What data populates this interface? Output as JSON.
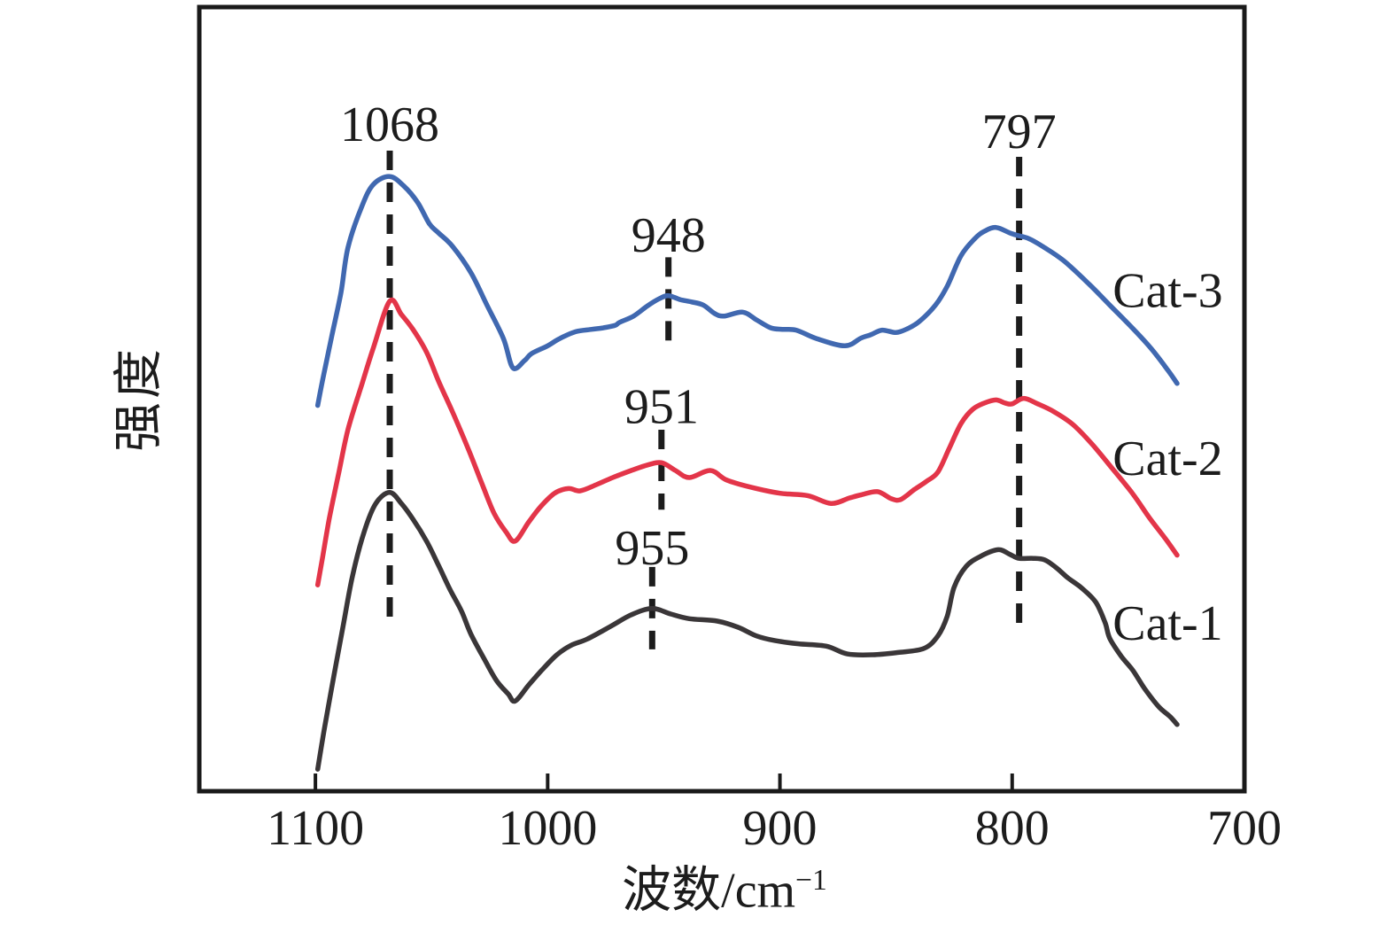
{
  "figure": {
    "background": "#ffffff",
    "text_color": "#1c1c1c",
    "axis_color": "#1a1a1a"
  },
  "chart_data": {
    "type": "line",
    "title": "",
    "xlabel": "波数/cm⁻¹",
    "xlabel_prefix": "波数/cm",
    "xlabel_superscript": "−1",
    "ylabel": "强度",
    "x_axis": {
      "range": [
        1150,
        700
      ],
      "reversed": true,
      "ticks": [
        1100,
        1000,
        900,
        800,
        700
      ]
    },
    "y_axis": {
      "range": [
        0,
        1
      ],
      "ticks": []
    },
    "grid": false,
    "legend_position": "right-inline",
    "series": [
      {
        "name": "Cat-1",
        "color": "#3a3638",
        "points": [
          [
            1099,
            0.028
          ],
          [
            1096,
            0.082
          ],
          [
            1092,
            0.148
          ],
          [
            1088,
            0.212
          ],
          [
            1084,
            0.275
          ],
          [
            1079,
            0.331
          ],
          [
            1074,
            0.367
          ],
          [
            1068,
            0.381
          ],
          [
            1063,
            0.367
          ],
          [
            1058,
            0.347
          ],
          [
            1052,
            0.318
          ],
          [
            1047,
            0.288
          ],
          [
            1042,
            0.257
          ],
          [
            1037,
            0.229
          ],
          [
            1033,
            0.2
          ],
          [
            1027,
            0.167
          ],
          [
            1022,
            0.141
          ],
          [
            1017,
            0.124
          ],
          [
            1014,
            0.115
          ],
          [
            1008,
            0.136
          ],
          [
            1002,
            0.156
          ],
          [
            996,
            0.174
          ],
          [
            990,
            0.186
          ],
          [
            983,
            0.194
          ],
          [
            973,
            0.21
          ],
          [
            964,
            0.225
          ],
          [
            955,
            0.233
          ],
          [
            947,
            0.226
          ],
          [
            939,
            0.22
          ],
          [
            927,
            0.217
          ],
          [
            918,
            0.209
          ],
          [
            910,
            0.198
          ],
          [
            902,
            0.192
          ],
          [
            892,
            0.188
          ],
          [
            880,
            0.185
          ],
          [
            871,
            0.175
          ],
          [
            860,
            0.174
          ],
          [
            849,
            0.177
          ],
          [
            838,
            0.182
          ],
          [
            832,
            0.198
          ],
          [
            828,
            0.223
          ],
          [
            825,
            0.26
          ],
          [
            820,
            0.286
          ],
          [
            814,
            0.299
          ],
          [
            806,
            0.308
          ],
          [
            801,
            0.302
          ],
          [
            797,
            0.297
          ],
          [
            791,
            0.297
          ],
          [
            786,
            0.295
          ],
          [
            781,
            0.285
          ],
          [
            776,
            0.272
          ],
          [
            770,
            0.259
          ],
          [
            764,
            0.241
          ],
          [
            760,
            0.215
          ],
          [
            758,
            0.195
          ],
          [
            753,
            0.172
          ],
          [
            748,
            0.154
          ],
          [
            743,
            0.131
          ],
          [
            737,
            0.108
          ],
          [
            732,
            0.095
          ],
          [
            729,
            0.085
          ]
        ]
      },
      {
        "name": "Cat-2",
        "color": "#e33549",
        "points": [
          [
            1099,
            0.263
          ],
          [
            1097,
            0.297
          ],
          [
            1094,
            0.348
          ],
          [
            1090,
            0.405
          ],
          [
            1086,
            0.461
          ],
          [
            1080,
            0.519
          ],
          [
            1075,
            0.566
          ],
          [
            1068,
            0.625
          ],
          [
            1063,
            0.608
          ],
          [
            1058,
            0.589
          ],
          [
            1052,
            0.559
          ],
          [
            1047,
            0.523
          ],
          [
            1041,
            0.484
          ],
          [
            1034,
            0.435
          ],
          [
            1028,
            0.39
          ],
          [
            1023,
            0.354
          ],
          [
            1018,
            0.331
          ],
          [
            1014,
            0.319
          ],
          [
            1008,
            0.344
          ],
          [
            1003,
            0.363
          ],
          [
            997,
            0.38
          ],
          [
            991,
            0.386
          ],
          [
            986,
            0.383
          ],
          [
            979,
            0.391
          ],
          [
            972,
            0.4
          ],
          [
            964,
            0.409
          ],
          [
            957,
            0.416
          ],
          [
            951,
            0.419
          ],
          [
            945,
            0.409
          ],
          [
            939,
            0.4
          ],
          [
            930,
            0.409
          ],
          [
            923,
            0.397
          ],
          [
            913,
            0.388
          ],
          [
            900,
            0.38
          ],
          [
            888,
            0.377
          ],
          [
            878,
            0.367
          ],
          [
            870,
            0.374
          ],
          [
            865,
            0.378
          ],
          [
            858,
            0.382
          ],
          [
            852,
            0.373
          ],
          [
            848,
            0.372
          ],
          [
            842,
            0.385
          ],
          [
            837,
            0.395
          ],
          [
            832,
            0.407
          ],
          [
            827,
            0.438
          ],
          [
            822,
            0.469
          ],
          [
            817,
            0.487
          ],
          [
            812,
            0.495
          ],
          [
            807,
            0.499
          ],
          [
            803,
            0.495
          ],
          [
            800,
            0.494
          ],
          [
            795,
            0.501
          ],
          [
            789,
            0.494
          ],
          [
            782,
            0.484
          ],
          [
            774,
            0.468
          ],
          [
            766,
            0.444
          ],
          [
            757,
            0.412
          ],
          [
            748,
            0.379
          ],
          [
            741,
            0.349
          ],
          [
            734,
            0.322
          ],
          [
            729,
            0.301
          ]
        ]
      },
      {
        "name": "Cat-3",
        "color": "#4068b0",
        "points": [
          [
            1099,
            0.492
          ],
          [
            1097,
            0.523
          ],
          [
            1093,
            0.58
          ],
          [
            1089,
            0.636
          ],
          [
            1086,
            0.693
          ],
          [
            1080,
            0.746
          ],
          [
            1075,
            0.774
          ],
          [
            1068,
            0.784
          ],
          [
            1062,
            0.772
          ],
          [
            1056,
            0.751
          ],
          [
            1051,
            0.724
          ],
          [
            1047,
            0.712
          ],
          [
            1041,
            0.695
          ],
          [
            1033,
            0.661
          ],
          [
            1026,
            0.619
          ],
          [
            1019,
            0.577
          ],
          [
            1015,
            0.54
          ],
          [
            1010,
            0.549
          ],
          [
            1007,
            0.558
          ],
          [
            1000,
            0.568
          ],
          [
            995,
            0.577
          ],
          [
            988,
            0.586
          ],
          [
            981,
            0.589
          ],
          [
            976,
            0.591
          ],
          [
            971,
            0.594
          ],
          [
            969,
            0.598
          ],
          [
            963,
            0.606
          ],
          [
            957,
            0.619
          ],
          [
            952,
            0.628
          ],
          [
            948,
            0.632
          ],
          [
            943,
            0.627
          ],
          [
            938,
            0.624
          ],
          [
            933,
            0.62
          ],
          [
            928,
            0.609
          ],
          [
            924,
            0.606
          ],
          [
            916,
            0.611
          ],
          [
            910,
            0.601
          ],
          [
            904,
            0.591
          ],
          [
            899,
            0.589
          ],
          [
            893,
            0.588
          ],
          [
            884,
            0.577
          ],
          [
            872,
            0.568
          ],
          [
            865,
            0.578
          ],
          [
            861,
            0.582
          ],
          [
            856,
            0.588
          ],
          [
            850,
            0.585
          ],
          [
            845,
            0.59
          ],
          [
            840,
            0.599
          ],
          [
            833,
            0.62
          ],
          [
            828,
            0.644
          ],
          [
            822,
            0.683
          ],
          [
            816,
            0.705
          ],
          [
            812,
            0.714
          ],
          [
            807,
            0.719
          ],
          [
            801,
            0.712
          ],
          [
            798,
            0.709
          ],
          [
            793,
            0.705
          ],
          [
            787,
            0.695
          ],
          [
            778,
            0.677
          ],
          [
            767,
            0.647
          ],
          [
            758,
            0.62
          ],
          [
            748,
            0.59
          ],
          [
            740,
            0.564
          ],
          [
            733,
            0.537
          ],
          [
            729,
            0.52
          ]
        ]
      }
    ],
    "series_labels": [
      {
        "text": "Cat-3",
        "wavenumber": 733,
        "position": 0.64
      },
      {
        "text": "Cat-2",
        "wavenumber": 733,
        "position": 0.426
      },
      {
        "text": "Cat-1",
        "wavenumber": 733,
        "position": 0.216
      }
    ],
    "annotations": [
      {
        "label": "1068",
        "wavenumber": 1068,
        "label_pos": 0.852,
        "dash_from": 0.817,
        "dash_to": 0.207
      },
      {
        "label": "948",
        "wavenumber": 948,
        "label_pos": 0.711,
        "dash_from": 0.681,
        "dash_to": 0.574
      },
      {
        "label": "951",
        "wavenumber": 951,
        "label_pos": 0.492,
        "dash_from": 0.461,
        "dash_to": 0.359
      },
      {
        "label": "955",
        "wavenumber": 955,
        "label_pos": 0.312,
        "dash_from": 0.286,
        "dash_to": 0.181
      },
      {
        "label": "797",
        "wavenumber": 797,
        "label_pos": 0.843,
        "dash_from": 0.809,
        "dash_to": 0.205
      }
    ]
  }
}
